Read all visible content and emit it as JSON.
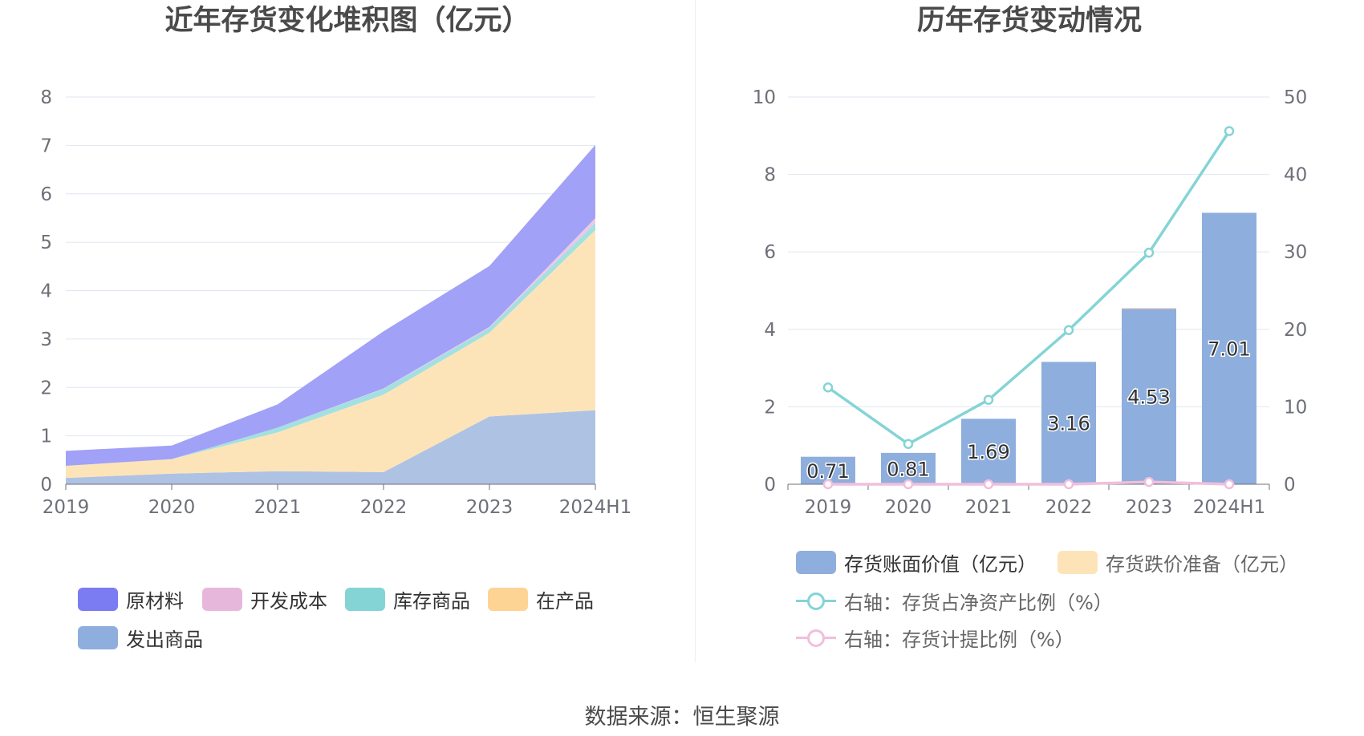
{
  "source_text": "数据来源：恒生聚源",
  "chart_data": [
    {
      "type": "area",
      "stacked": true,
      "title": "近年存货变化堆积图（亿元）",
      "categories": [
        "2019",
        "2020",
        "2021",
        "2022",
        "2023",
        "2024H1"
      ],
      "y_ticks": [
        "0",
        "1",
        "2",
        "3",
        "4",
        "5",
        "6",
        "7",
        "8"
      ],
      "ylim": [
        0,
        8
      ],
      "grid": true,
      "legend_position": "bottom-left",
      "series": [
        {
          "name": "发出商品",
          "color": "#aec2e4",
          "legend_color": "#8eaedd",
          "values": [
            0.13,
            0.22,
            0.27,
            0.25,
            1.4,
            1.53
          ]
        },
        {
          "name": "在产品",
          "color": "#fde4b8",
          "legend_color": "#fdd494",
          "values": [
            0.25,
            0.3,
            0.8,
            1.6,
            1.73,
            3.72
          ]
        },
        {
          "name": "库存商品",
          "color": "#a3e0e1",
          "legend_color": "#84d4d6",
          "values": [
            0.0,
            0.0,
            0.1,
            0.12,
            0.1,
            0.15
          ]
        },
        {
          "name": "开发成本",
          "color": "#ecc8e3",
          "legend_color": "#e7b7db",
          "values": [
            0.0,
            0.0,
            0.0,
            0.01,
            0.02,
            0.1
          ]
        },
        {
          "name": "原材料",
          "color": "#a1a1f7",
          "legend_color": "#7b7bf2",
          "values": [
            0.31,
            0.28,
            0.48,
            1.18,
            1.26,
            1.51
          ]
        }
      ]
    },
    {
      "type": "bar",
      "title": "历年存货变动情况",
      "categories": [
        "2019",
        "2020",
        "2021",
        "2022",
        "2023",
        "2024H1"
      ],
      "y_left_ticks": [
        "0",
        "2",
        "4",
        "6",
        "8",
        "10"
      ],
      "y_left_lim": [
        0,
        10
      ],
      "y_right_ticks": [
        "0",
        "10",
        "20",
        "30",
        "40",
        "50"
      ],
      "y_right_lim": [
        0,
        50
      ],
      "grid": true,
      "legend_position": "bottom",
      "series": [
        {
          "name": "存货账面价值（亿元）",
          "kind": "bar",
          "axis": "left",
          "color": "#8eaedd",
          "values": [
            0.71,
            0.81,
            1.69,
            3.16,
            4.53,
            7.01
          ],
          "labels": [
            "0.71",
            "0.81",
            "1.69",
            "3.16",
            "4.53",
            "7.01"
          ]
        },
        {
          "name": "存货跌价准备（亿元）",
          "kind": "bar",
          "axis": "left",
          "color": "#fde4b8",
          "values": [
            0,
            0,
            0,
            0,
            0.01,
            0
          ]
        },
        {
          "name": "右轴：存货占净资产比例（%）",
          "kind": "line",
          "axis": "right",
          "color": "#84d4d6",
          "values": [
            12.5,
            5.2,
            10.9,
            19.9,
            29.9,
            45.6
          ]
        },
        {
          "name": "右轴：存货计提比例（%）",
          "kind": "line",
          "axis": "right",
          "color": "#f0bfdc",
          "values": [
            0.0,
            0.0,
            0.0,
            0.0,
            0.3,
            0.0
          ]
        }
      ]
    }
  ]
}
